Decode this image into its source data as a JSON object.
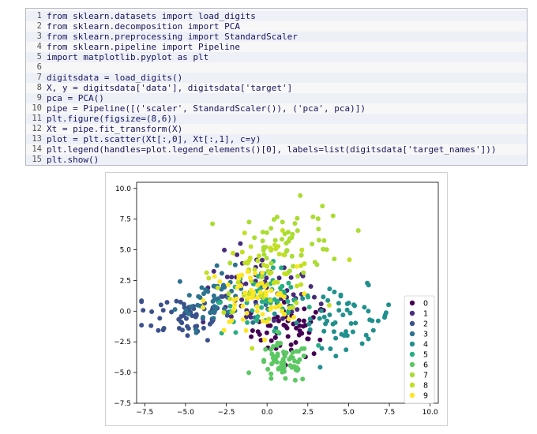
{
  "code_cell": {
    "lines": [
      "from sklearn.datasets import load_digits",
      "from sklearn.decomposition import PCA",
      "from sklearn.preprocessing import StandardScaler",
      "from sklearn.pipeline import Pipeline",
      "import matplotlib.pyplot as plt",
      "",
      "digitsdata = load_digits()",
      "X, y = digitsdata['data'], digitsdata['target']",
      "pca = PCA()",
      "pipe = Pipeline([('scaler', StandardScaler()), ('pca', pca)])",
      "plt.figure(figsize=(8,6))",
      "Xt = pipe.fit_transform(X)",
      "plot = plt.scatter(Xt[:,0], Xt[:,1], c=y)",
      "plt.legend(handles=plot.legend_elements()[0], labels=list(digitsdata['target_names']))",
      "plt.show()"
    ],
    "line_numbers": [
      "1",
      "2",
      "3",
      "4",
      "5",
      "6",
      "7",
      "8",
      "9",
      "10",
      "11",
      "12",
      "13",
      "14",
      "15"
    ]
  },
  "chart_data": {
    "type": "scatter",
    "title": "",
    "xlabel": "",
    "ylabel": "",
    "xlim": [
      -8,
      10.5
    ],
    "ylim": [
      -7.5,
      10.5
    ],
    "xticks": [
      -7.5,
      -5.0,
      -2.5,
      0.0,
      2.5,
      5.0,
      7.5,
      10.0
    ],
    "yticks": [
      -7.5,
      -5.0,
      -2.5,
      0.0,
      2.5,
      5.0,
      7.5,
      10.0
    ],
    "xtick_labels": [
      "−7.5",
      "−5.0",
      "−2.5",
      "0.0",
      "2.5",
      "5.0",
      "7.5",
      "10.0"
    ],
    "ytick_labels": [
      "−7.5",
      "−5.0",
      "−2.5",
      "0.0",
      "2.5",
      "5.0",
      "7.5",
      "10.0"
    ],
    "grid": false,
    "legend_position": "lower-right",
    "series": [
      {
        "name": "0",
        "color": "#440154",
        "center": [
          1.5,
          -1.5
        ],
        "spread": [
          1.2,
          1.1
        ]
      },
      {
        "name": "1",
        "color": "#472c7a",
        "center": [
          -0.5,
          1.5
        ],
        "spread": [
          1.8,
          1.6
        ]
      },
      {
        "name": "2",
        "color": "#3b518b",
        "center": [
          -5.0,
          -0.3
        ],
        "spread": [
          1.5,
          1.0
        ]
      },
      {
        "name": "3",
        "color": "#2c718e",
        "center": [
          -3.0,
          1.0
        ],
        "spread": [
          1.3,
          1.2
        ]
      },
      {
        "name": "4",
        "color": "#21908d",
        "center": [
          4.8,
          -0.5
        ],
        "spread": [
          1.5,
          1.2
        ]
      },
      {
        "name": "5",
        "color": "#27ad81",
        "center": [
          0.0,
          0.8
        ],
        "spread": [
          1.4,
          1.4
        ]
      },
      {
        "name": "6",
        "color": "#5cc863",
        "center": [
          1.0,
          -4.3
        ],
        "spread": [
          0.8,
          0.8
        ]
      },
      {
        "name": "7",
        "color": "#aadc32",
        "center": [
          1.5,
          5.5
        ],
        "spread": [
          1.7,
          1.6
        ]
      },
      {
        "name": "8",
        "color": "#c2df23",
        "center": [
          0.0,
          3.0
        ],
        "spread": [
          1.6,
          1.5
        ]
      },
      {
        "name": "9",
        "color": "#fde725",
        "center": [
          -1.0,
          0.8
        ],
        "spread": [
          1.4,
          1.4
        ]
      }
    ]
  }
}
